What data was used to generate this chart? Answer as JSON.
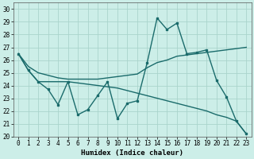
{
  "xlabel": "Humidex (Indice chaleur)",
  "bg_color": "#cceee8",
  "grid_color": "#aad4cc",
  "line_color": "#1a6b6b",
  "xlim": [
    -0.5,
    23.5
  ],
  "ylim": [
    20,
    30.5
  ],
  "yticks": [
    20,
    21,
    22,
    23,
    24,
    25,
    26,
    27,
    28,
    29,
    30
  ],
  "xticks": [
    0,
    1,
    2,
    3,
    4,
    5,
    6,
    7,
    8,
    9,
    10,
    11,
    12,
    13,
    14,
    15,
    16,
    17,
    18,
    19,
    20,
    21,
    22,
    23
  ],
  "line1_x": [
    0,
    1,
    2,
    3,
    4,
    5,
    6,
    7,
    8,
    9,
    10,
    11,
    12,
    13,
    14,
    15,
    16,
    17,
    18,
    19,
    20,
    21,
    22,
    23
  ],
  "line1_y": [
    26.5,
    25.2,
    24.3,
    23.7,
    22.5,
    24.3,
    21.7,
    22.1,
    23.2,
    24.3,
    21.4,
    22.6,
    22.8,
    25.8,
    29.3,
    28.4,
    28.9,
    26.5,
    26.6,
    26.8,
    24.4,
    23.1,
    21.2,
    20.2
  ],
  "line2_x": [
    0,
    1,
    2,
    3,
    4,
    5,
    6,
    7,
    8,
    9,
    10,
    11,
    12,
    13,
    14,
    15,
    16,
    17,
    18,
    19,
    20,
    21,
    22,
    23
  ],
  "line2_y": [
    26.5,
    25.5,
    25.0,
    24.8,
    24.6,
    24.5,
    24.5,
    24.5,
    24.5,
    24.6,
    24.7,
    24.8,
    24.9,
    25.4,
    25.8,
    26.0,
    26.3,
    26.4,
    26.5,
    26.6,
    26.7,
    26.8,
    26.9,
    27.0
  ],
  "line3_x": [
    0,
    1,
    2,
    3,
    4,
    5,
    6,
    7,
    8,
    9,
    10,
    11,
    12,
    13,
    14,
    15,
    16,
    17,
    18,
    19,
    20,
    21,
    22,
    23
  ],
  "line3_y": [
    26.5,
    25.2,
    24.3,
    24.3,
    24.3,
    24.3,
    24.2,
    24.1,
    24.0,
    23.9,
    23.8,
    23.6,
    23.4,
    23.2,
    23.0,
    22.8,
    22.6,
    22.4,
    22.2,
    22.0,
    21.7,
    21.5,
    21.2,
    20.2
  ],
  "xlabel_fontsize": 6.5,
  "tick_fontsize": 5.5,
  "linewidth": 1.0,
  "markersize": 2.0
}
